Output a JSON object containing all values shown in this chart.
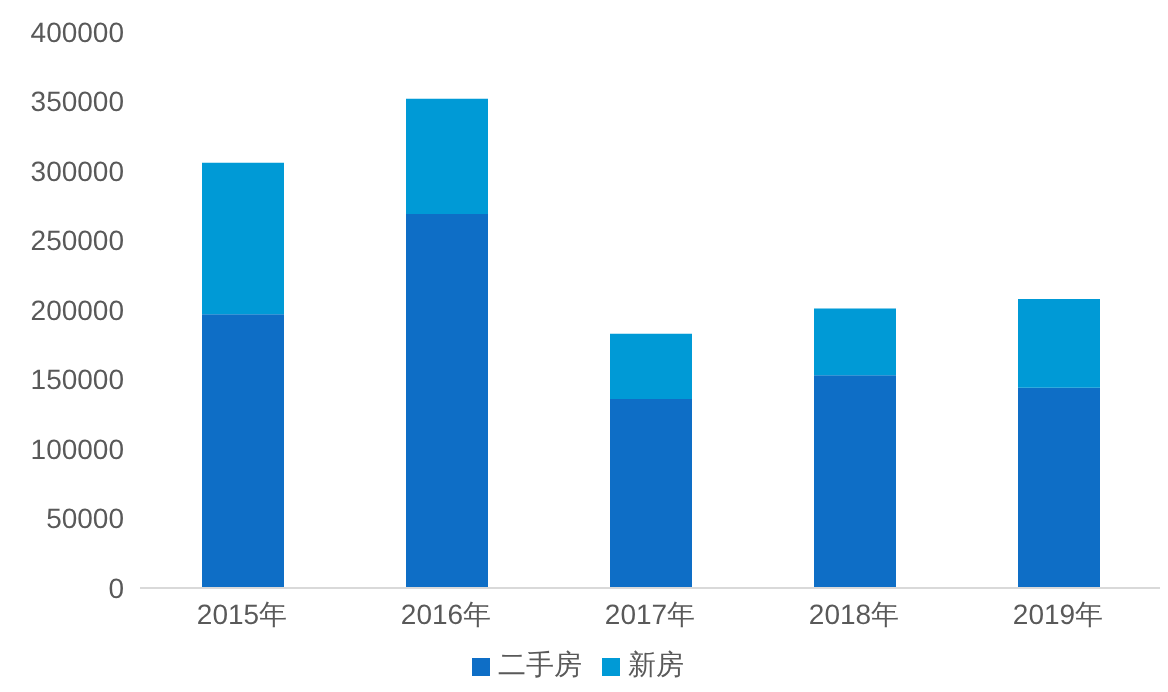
{
  "chart_data": {
    "type": "bar",
    "stacked": true,
    "categories": [
      "2015年",
      "2016年",
      "2017年",
      "2018年",
      "2019年"
    ],
    "series": [
      {
        "name": "二手房",
        "color": "#0e6ec6",
        "values": [
          197000,
          269000,
          136000,
          153000,
          144000
        ]
      },
      {
        "name": "新房",
        "color": "#009ad6",
        "values": [
          109000,
          83000,
          47000,
          48000,
          64000
        ]
      }
    ],
    "ylim": [
      0,
      400000
    ],
    "yticks": [
      0,
      50000,
      100000,
      150000,
      200000,
      250000,
      300000,
      350000,
      400000
    ],
    "grid": false,
    "legend": "bottom"
  }
}
